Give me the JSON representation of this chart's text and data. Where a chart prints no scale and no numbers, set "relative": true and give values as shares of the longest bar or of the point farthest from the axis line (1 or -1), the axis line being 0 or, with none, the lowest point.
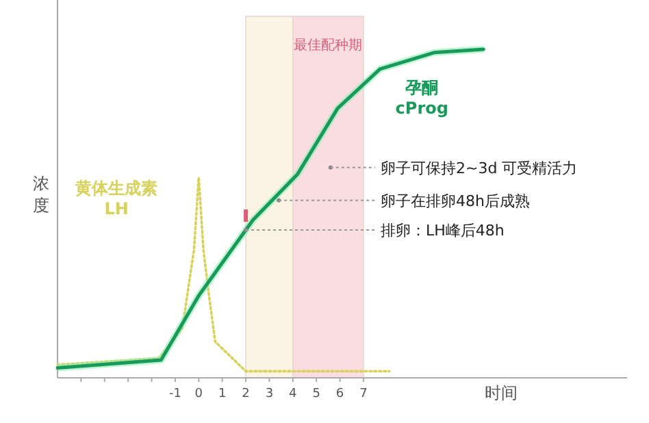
{
  "chart_data": {
    "type": "line",
    "relative": true,
    "xlabel": "时间",
    "ylabel": "浓度",
    "xlim": [
      -6,
      18.2
    ],
    "xticks": [
      {
        "value": -5,
        "label": null
      },
      {
        "value": -4,
        "label": null
      },
      {
        "value": -3,
        "label": null
      },
      {
        "value": -2,
        "label": null
      },
      -1,
      0,
      1,
      2,
      3,
      4,
      5,
      6,
      7
    ],
    "bands": [
      {
        "axis": "x",
        "from": 2,
        "to": 4,
        "color": "#fbf3e3"
      },
      {
        "axis": "x",
        "from": 4,
        "to": 7,
        "label": "最佳配种期",
        "color": "#f9dde0"
      }
    ],
    "series": [
      {
        "name": "黄体生成素\nLH",
        "color": "#d6d25c",
        "line_style": "dotted",
        "x": [
          -6,
          -1.7,
          -0.7,
          -0.2,
          0,
          0.2,
          0.4,
          0.7,
          2,
          8.1
        ],
        "values": [
          0.04,
          0.06,
          0.15,
          0.39,
          0.61,
          0.39,
          0.27,
          0.11,
          0.02,
          0.02
        ]
      },
      {
        "name": "孕酮\ncProg",
        "color": "#1a9a5a",
        "line_style": "solid",
        "x": [
          -6,
          -1.6,
          0,
          2,
          2.3,
          4.2,
          5.9,
          7.7,
          10,
          12.1
        ],
        "values": [
          0.03,
          0.054,
          0.25,
          0.45,
          0.48,
          0.62,
          0.82,
          0.94,
          0.99,
          1
        ]
      }
    ],
    "annotations": [
      {
        "text": "卵子可保持2~3d 可受精活力",
        "x": 5.6,
        "y": 0.64
      },
      {
        "text": "卵子在排卵48h后成熟",
        "x": 3.4,
        "y": 0.54
      },
      {
        "text": "排卵：LH峰后48h",
        "x": 2,
        "y": 0.45
      }
    ]
  }
}
